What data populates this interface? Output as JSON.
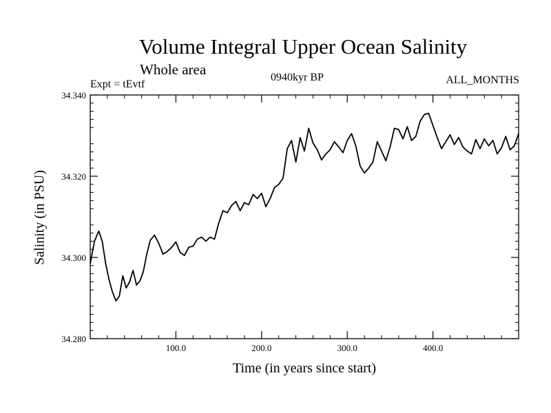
{
  "chart_data": {
    "type": "line",
    "title": "Volume Integral Upper Ocean Salinity",
    "subtitle": "Whole area",
    "left_label": "Expt = tEvtf",
    "center_label": "0940kyr BP",
    "right_label": "ALL_MONTHS",
    "xlabel": "Time (in years since start)",
    "ylabel": "Salinity (in PSU)",
    "xlim": [
      0,
      500
    ],
    "ylim": [
      34.28,
      34.34
    ],
    "x_ticks": [
      100,
      200,
      300,
      400
    ],
    "x_tick_labels": [
      "100.0",
      "200.0",
      "300.0",
      "400.0"
    ],
    "y_ticks": [
      34.28,
      34.3,
      34.32,
      34.34
    ],
    "y_tick_labels": [
      "34.280",
      "34.300",
      "34.320",
      "34.340"
    ],
    "series": [
      {
        "name": "salinity",
        "x": [
          0,
          5,
          10,
          14,
          18,
          22,
          26,
          30,
          34,
          38,
          42,
          46,
          50,
          54,
          58,
          62,
          66,
          70,
          75,
          80,
          85,
          90,
          95,
          100,
          105,
          110,
          115,
          120,
          125,
          130,
          135,
          140,
          145,
          150,
          155,
          160,
          165,
          170,
          175,
          180,
          185,
          190,
          195,
          200,
          205,
          210,
          215,
          220,
          225,
          230,
          235,
          240,
          245,
          250,
          255,
          260,
          265,
          270,
          275,
          280,
          285,
          290,
          295,
          300,
          305,
          310,
          315,
          320,
          325,
          330,
          335,
          340,
          345,
          350,
          355,
          360,
          365,
          370,
          375,
          380,
          385,
          390,
          395,
          400,
          405,
          410,
          415,
          420,
          425,
          430,
          435,
          440,
          445,
          450,
          455,
          460,
          465,
          470,
          475,
          480,
          485,
          490,
          495,
          500
        ],
        "values": [
          34.2985,
          34.304,
          34.3065,
          34.304,
          34.2985,
          34.2945,
          34.2915,
          34.2893,
          34.2905,
          34.2955,
          34.2925,
          34.294,
          34.2968,
          34.2932,
          34.2942,
          34.2965,
          34.3008,
          34.3042,
          34.3055,
          34.3035,
          34.3008,
          34.3015,
          34.3025,
          34.3038,
          34.3012,
          34.3005,
          34.3025,
          34.3028,
          34.3045,
          34.305,
          34.304,
          34.305,
          34.3045,
          34.3085,
          34.3115,
          34.311,
          34.3128,
          34.3138,
          34.3115,
          34.3135,
          34.313,
          34.3155,
          34.3145,
          34.3158,
          34.3125,
          34.3145,
          34.3172,
          34.318,
          34.3195,
          34.3268,
          34.3288,
          34.3235,
          34.3295,
          34.3262,
          34.3318,
          34.3282,
          34.3265,
          34.324,
          34.3255,
          34.3265,
          34.3285,
          34.3272,
          34.3258,
          34.3288,
          34.3305,
          34.3275,
          34.3225,
          34.3208,
          34.322,
          34.3235,
          34.3285,
          34.3262,
          34.3238,
          34.3272,
          34.3318,
          34.3315,
          34.3292,
          34.3322,
          34.3288,
          34.3298,
          34.3335,
          34.3352,
          34.3355,
          34.3325,
          34.3295,
          34.3268,
          34.3285,
          34.3302,
          34.3278,
          34.3295,
          34.3272,
          34.3262,
          34.3255,
          34.329,
          34.3268,
          34.3292,
          34.3275,
          34.3288,
          34.3255,
          34.327,
          34.3298,
          34.3265,
          34.3275,
          34.3305
        ]
      }
    ]
  }
}
